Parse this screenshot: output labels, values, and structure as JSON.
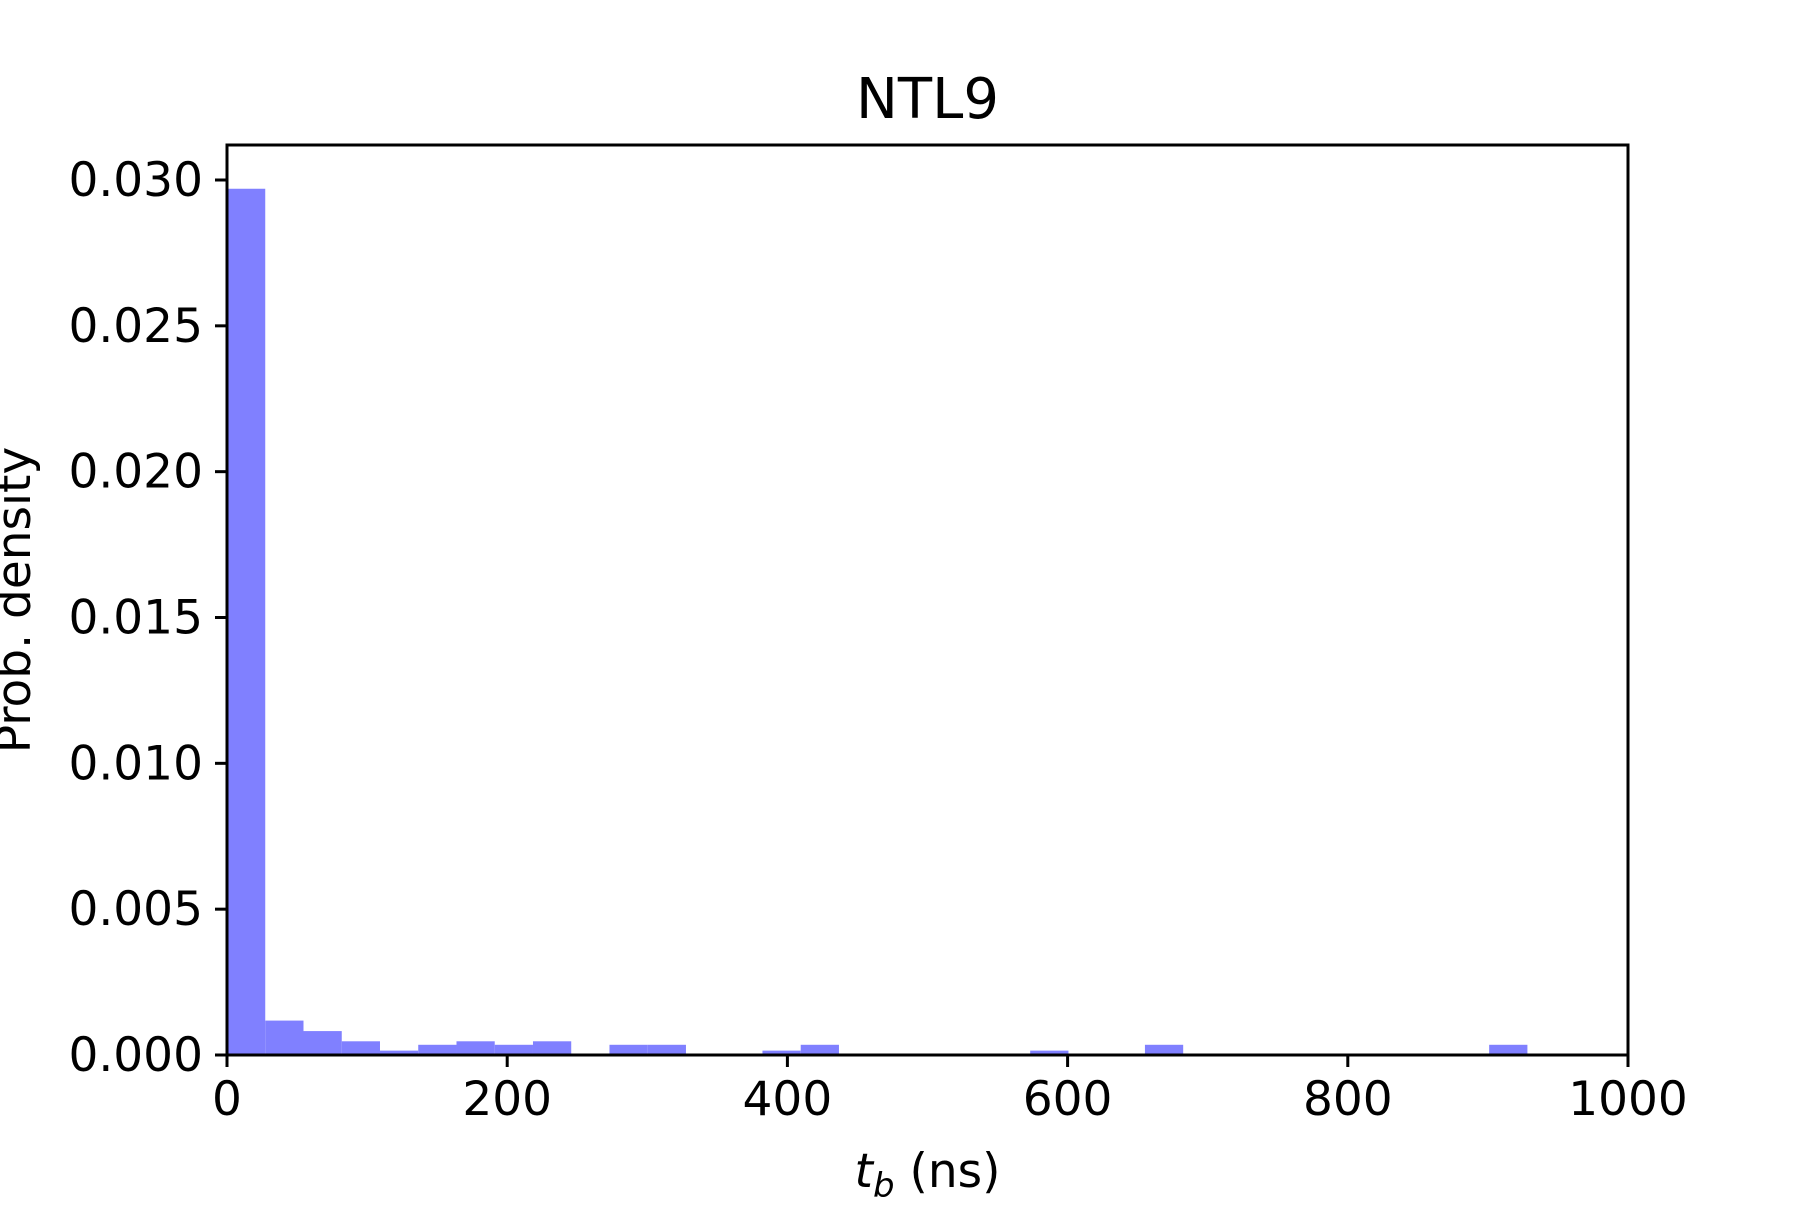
{
  "chart_data": {
    "type": "bar",
    "title": "NTL9",
    "xlabel": {
      "symbol": "t",
      "subscript": "b",
      "unit": " (ns)"
    },
    "ylabel": "Prob. density",
    "xlim": [
      0,
      1000
    ],
    "ylim": [
      0,
      0.0312
    ],
    "x_ticks": [
      0,
      200,
      400,
      600,
      800,
      1000
    ],
    "x_tick_labels": [
      "0",
      "200",
      "400",
      "600",
      "800",
      "1000"
    ],
    "y_ticks": [
      0.0,
      0.005,
      0.01,
      0.015,
      0.02,
      0.025,
      0.03
    ],
    "y_tick_labels": [
      "0.000",
      "0.005",
      "0.010",
      "0.015",
      "0.020",
      "0.025",
      "0.030"
    ],
    "bar_color": "#8080ff",
    "bin_width": 27.3,
    "bins": [
      {
        "x_start": 0.0,
        "value": 0.0297
      },
      {
        "x_start": 27.3,
        "value": 0.00118
      },
      {
        "x_start": 54.6,
        "value": 0.00082
      },
      {
        "x_start": 81.9,
        "value": 0.00047
      },
      {
        "x_start": 109.2,
        "value": 0.00015
      },
      {
        "x_start": 136.5,
        "value": 0.00035
      },
      {
        "x_start": 163.8,
        "value": 0.00047
      },
      {
        "x_start": 191.1,
        "value": 0.00035
      },
      {
        "x_start": 218.4,
        "value": 0.00047
      },
      {
        "x_start": 273.0,
        "value": 0.00035
      },
      {
        "x_start": 300.3,
        "value": 0.00035
      },
      {
        "x_start": 382.2,
        "value": 0.00015
      },
      {
        "x_start": 409.5,
        "value": 0.00035
      },
      {
        "x_start": 573.3,
        "value": 0.00015
      },
      {
        "x_start": 655.2,
        "value": 0.00035
      },
      {
        "x_start": 900.9,
        "value": 0.00035
      }
    ],
    "grid": false,
    "legend": "none"
  }
}
